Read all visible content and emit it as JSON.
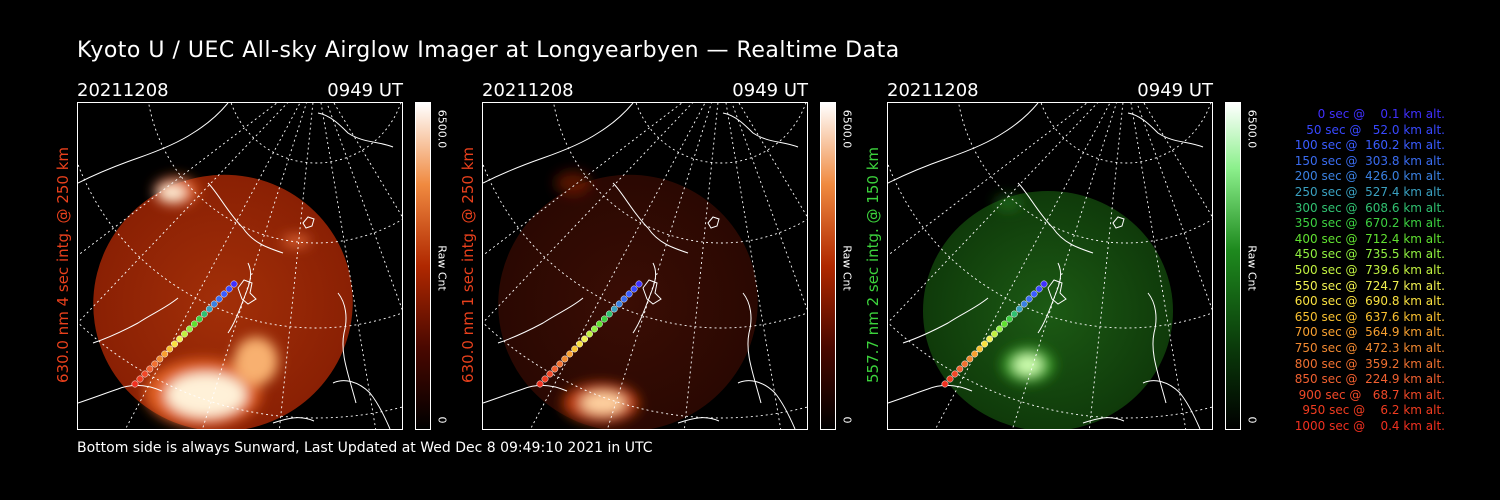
{
  "title": "Kyoto U / UEC All-sky Airglow Imager at Longyearbyen — Realtime Data",
  "footer": "Bottom side is always Sunward, Last Updated at Wed Dec  8 09:49:10 2021 in UTC",
  "panels": [
    {
      "date": "20211208",
      "time": "0949 UT",
      "ylabel": "630.0 nm 4 sec intg. @ 250 km",
      "ylabel_color": "#e8401c",
      "cbar_max": "6500.0",
      "cbar_min": "0",
      "cbar_label": "Raw Cnt",
      "colormap": "red",
      "brightness": "high"
    },
    {
      "date": "20211208",
      "time": "0949 UT",
      "ylabel": "630.0 nm 1 sec intg. @ 250 km",
      "ylabel_color": "#e8401c",
      "cbar_max": "6500.0",
      "cbar_min": "0",
      "cbar_label": "Raw Cnt",
      "colormap": "red",
      "brightness": "low"
    },
    {
      "date": "20211208",
      "time": "0949 UT",
      "ylabel": "557.7 nm 2 sec intg. @ 150 km",
      "ylabel_color": "#3cd23c",
      "cbar_max": "6500.0",
      "cbar_min": "0",
      "cbar_label": "Raw Cnt",
      "colormap": "green",
      "brightness": "low"
    }
  ],
  "legend": [
    {
      "text": "   0 sec @    0.1 km alt.",
      "color": "#4030ff"
    },
    {
      "text": "  50 sec @   52.0 km alt.",
      "color": "#3848ff"
    },
    {
      "text": " 100 sec @  160.2 km alt.",
      "color": "#3a5cff"
    },
    {
      "text": " 150 sec @  303.8 km alt.",
      "color": "#3a6cf0"
    },
    {
      "text": " 200 sec @  426.0 km alt.",
      "color": "#3a80e0"
    },
    {
      "text": " 250 sec @  527.4 km alt.",
      "color": "#3aa0c0"
    },
    {
      "text": " 300 sec @  608.6 km alt.",
      "color": "#30c070"
    },
    {
      "text": " 350 sec @  670.2 km alt.",
      "color": "#3cd040"
    },
    {
      "text": " 400 sec @  712.4 km alt.",
      "color": "#60e030"
    },
    {
      "text": " 450 sec @  735.5 km alt.",
      "color": "#90f040"
    },
    {
      "text": " 500 sec @  739.6 km alt.",
      "color": "#c0f040"
    },
    {
      "text": " 550 sec @  724.7 km alt.",
      "color": "#f0f050"
    },
    {
      "text": " 600 sec @  690.8 km alt.",
      "color": "#f8e040"
    },
    {
      "text": " 650 sec @  637.6 km alt.",
      "color": "#f8c030"
    },
    {
      "text": " 700 sec @  564.9 km alt.",
      "color": "#f8a030"
    },
    {
      "text": " 750 sec @  472.3 km alt.",
      "color": "#f08830"
    },
    {
      "text": " 800 sec @  359.2 km alt.",
      "color": "#f07030"
    },
    {
      "text": " 850 sec @  224.9 km alt.",
      "color": "#f06030"
    },
    {
      "text": " 900 sec @   68.7 km alt.",
      "color": "#f04828"
    },
    {
      "text": " 950 sec @    6.2 km alt.",
      "color": "#f03c20"
    },
    {
      "text": "1000 sec @    0.4 km alt.",
      "color": "#f03020"
    }
  ]
}
